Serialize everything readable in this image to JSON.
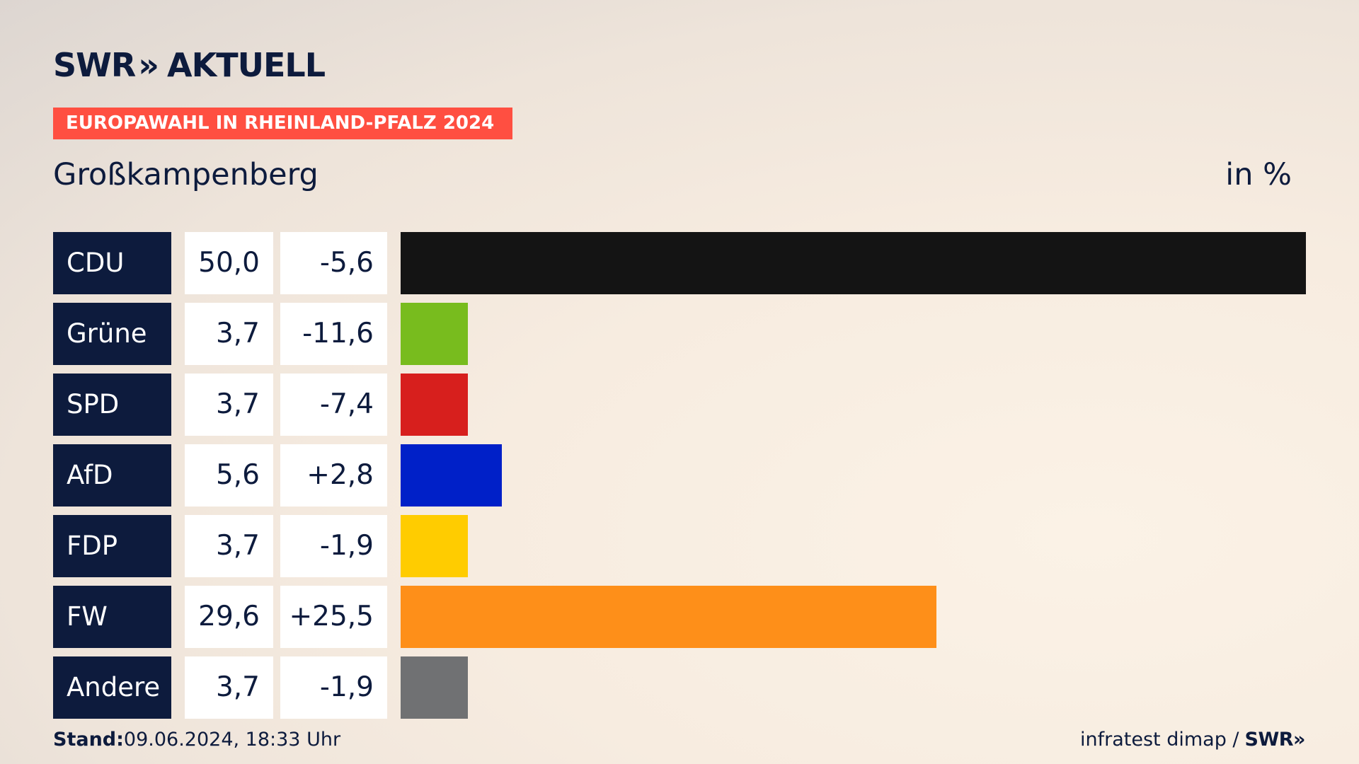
{
  "header": {
    "logo_swr": "SWR",
    "logo_chevrons": "»",
    "logo_aktuell": "AKTUELL",
    "banner": "EUROPAWAHL IN RHEINLAND-PFALZ 2024",
    "place": "Großkampenberg",
    "unit": "in %"
  },
  "chart_data": {
    "type": "bar",
    "orientation": "horizontal",
    "title": "Großkampenberg",
    "unit": "in %",
    "categories": [
      "CDU",
      "Grüne",
      "SPD",
      "AfD",
      "FDP",
      "FW",
      "Andere"
    ],
    "values": [
      50.0,
      3.7,
      3.7,
      5.6,
      3.7,
      29.6,
      3.7
    ],
    "value_labels": [
      "50,0",
      "3,7",
      "3,7",
      "5,6",
      "3,7",
      "29,6",
      "3,7"
    ],
    "changes": [
      -5.6,
      -11.6,
      -7.4,
      2.8,
      -1.9,
      25.5,
      -1.9
    ],
    "change_labels": [
      "-5,6",
      "-11,6",
      "-7,4",
      "+2,8",
      "-1,9",
      "+25,5",
      "-1,9"
    ],
    "colors": [
      "#141414",
      "#78bc1e",
      "#d71f1d",
      "#0020c8",
      "#ffcc00",
      "#fe8f19",
      "#707173"
    ],
    "xlim": [
      0,
      50
    ]
  },
  "footer": {
    "stand_label": "Stand:",
    "stand_value": "09.06.2024, 18:33 Uhr",
    "source": "infratest dimap /",
    "source_logo": "SWR»"
  }
}
